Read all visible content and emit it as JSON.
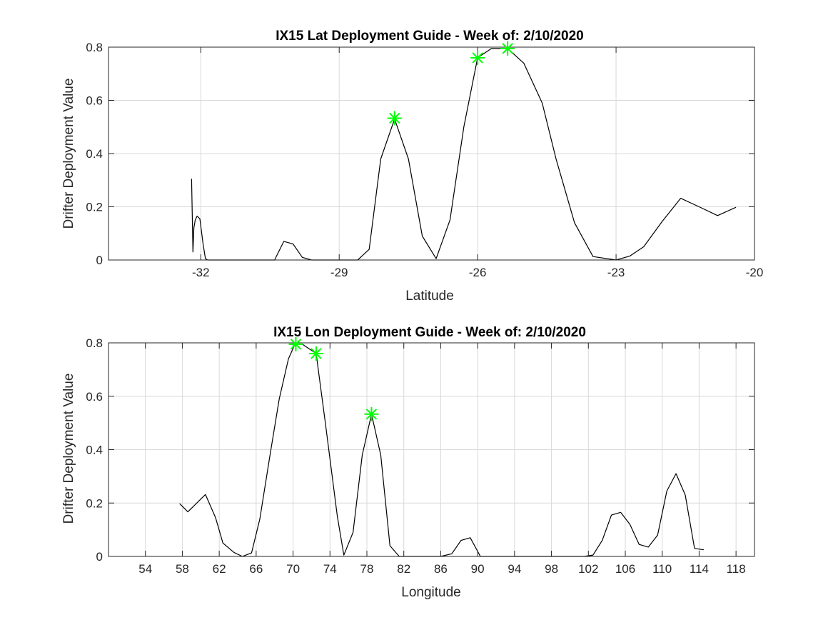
{
  "colors": {
    "line": "#000000",
    "marker": "#00ff00",
    "grid": "#d9d9d9",
    "axes": "#262626"
  },
  "chart_data": [
    {
      "type": "line",
      "title": "IX15 Lat Deployment Guide - Week of: 2/10/2020",
      "xlabel": "Latitude",
      "ylabel": "Drifter Deployment Value",
      "xlim": [
        -34,
        -20
      ],
      "ylim": [
        0,
        0.8
      ],
      "xticks": [
        -32,
        -29,
        -26,
        -23,
        -20
      ],
      "xtick_labels": [
        "-32",
        "-29",
        "-26",
        "-23",
        "-20"
      ],
      "yticks": [
        0,
        0.2,
        0.4,
        0.6,
        0.8
      ],
      "ytick_labels": [
        "0",
        "0.2",
        "0.4",
        "0.6",
        "0.8"
      ],
      "grid": true,
      "marker_symbol": "*",
      "series": [
        {
          "x": [
            -32.2,
            -32.17,
            -32.15,
            -32.12,
            -32.08,
            -32.02,
            -31.95,
            -31.9,
            -31.85,
            -31.7,
            -31.5,
            -31.0,
            -30.4,
            -30.2,
            -30.0,
            -29.8,
            -29.6,
            -29.3,
            -28.9,
            -28.6,
            -28.35,
            -28.1,
            -27.8,
            -27.5,
            -27.2,
            -26.9,
            -26.6,
            -26.3,
            -26.0,
            -25.7,
            -25.35,
            -25.0,
            -24.6,
            -24.3,
            -23.9,
            -23.5,
            -23.0,
            -22.7,
            -22.4,
            -22.0,
            -21.6,
            -21.2,
            -20.8,
            -20.4
          ],
          "y": [
            0.305,
            0.03,
            0.12,
            0.15,
            0.165,
            0.155,
            0.06,
            0.005,
            0.0,
            0.0,
            0.0,
            0.0,
            0.0,
            0.07,
            0.06,
            0.01,
            0.0,
            0.0,
            0.0,
            0.0,
            0.04,
            0.38,
            0.53,
            0.38,
            0.09,
            0.005,
            0.15,
            0.5,
            0.76,
            0.795,
            0.795,
            0.74,
            0.59,
            0.38,
            0.14,
            0.013,
            0.0,
            0.015,
            0.05,
            0.145,
            0.232,
            0.2,
            0.167,
            0.198
          ]
        }
      ],
      "markers": [
        {
          "x": -27.8,
          "y": 0.533
        },
        {
          "x": -26.0,
          "y": 0.76
        },
        {
          "x": -25.35,
          "y": 0.795
        }
      ]
    },
    {
      "type": "line",
      "title": "IX15 Lon Deployment Guide - Week of: 2/10/2020",
      "xlabel": "Longitude",
      "ylabel": "Drifter Deployment Value",
      "xlim": [
        50,
        120
      ],
      "ylim": [
        0,
        0.8
      ],
      "xticks": [
        54,
        58,
        62,
        66,
        70,
        74,
        78,
        82,
        86,
        90,
        94,
        98,
        102,
        106,
        110,
        114,
        118
      ],
      "xtick_labels": [
        "54",
        "58",
        "62",
        "66",
        "70",
        "74",
        "78",
        "82",
        "86",
        "90",
        "94",
        "98",
        "102",
        "106",
        "110",
        "114",
        "118"
      ],
      "yticks": [
        0,
        0.2,
        0.4,
        0.6,
        0.8
      ],
      "ytick_labels": [
        "0",
        "0.2",
        "0.4",
        "0.6",
        "0.8"
      ],
      "grid": true,
      "marker_symbol": "*",
      "series": [
        {
          "x": [
            57.7,
            58.6,
            60.5,
            61.6,
            62.4,
            63.6,
            64.5,
            65.5,
            66.4,
            67.5,
            68.5,
            69.5,
            70.2,
            71.0,
            72.5,
            73.5,
            74.8,
            75.5,
            76.5,
            77.5,
            78.5,
            79.5,
            80.5,
            81.5,
            82.5,
            86.0,
            87.2,
            88.2,
            89.2,
            90.3,
            100.5,
            101.5,
            102.5,
            103.5,
            104.5,
            105.5,
            106.5,
            107.5,
            108.5,
            109.5,
            110.5,
            111.5,
            112.5,
            113.5,
            114.5
          ],
          "y": [
            0.198,
            0.167,
            0.232,
            0.145,
            0.05,
            0.015,
            0.0,
            0.013,
            0.14,
            0.38,
            0.59,
            0.74,
            0.795,
            0.795,
            0.76,
            0.5,
            0.15,
            0.005,
            0.09,
            0.38,
            0.533,
            0.38,
            0.04,
            0.0,
            0.0,
            0.0,
            0.01,
            0.06,
            0.07,
            0.0,
            0.0,
            0.0,
            0.005,
            0.06,
            0.155,
            0.165,
            0.12,
            0.045,
            0.035,
            0.08,
            0.245,
            0.31,
            0.23,
            0.03,
            0.025
          ]
        }
      ],
      "markers": [
        {
          "x": 70.3,
          "y": 0.795
        },
        {
          "x": 72.5,
          "y": 0.76
        },
        {
          "x": 78.5,
          "y": 0.533
        }
      ]
    }
  ]
}
